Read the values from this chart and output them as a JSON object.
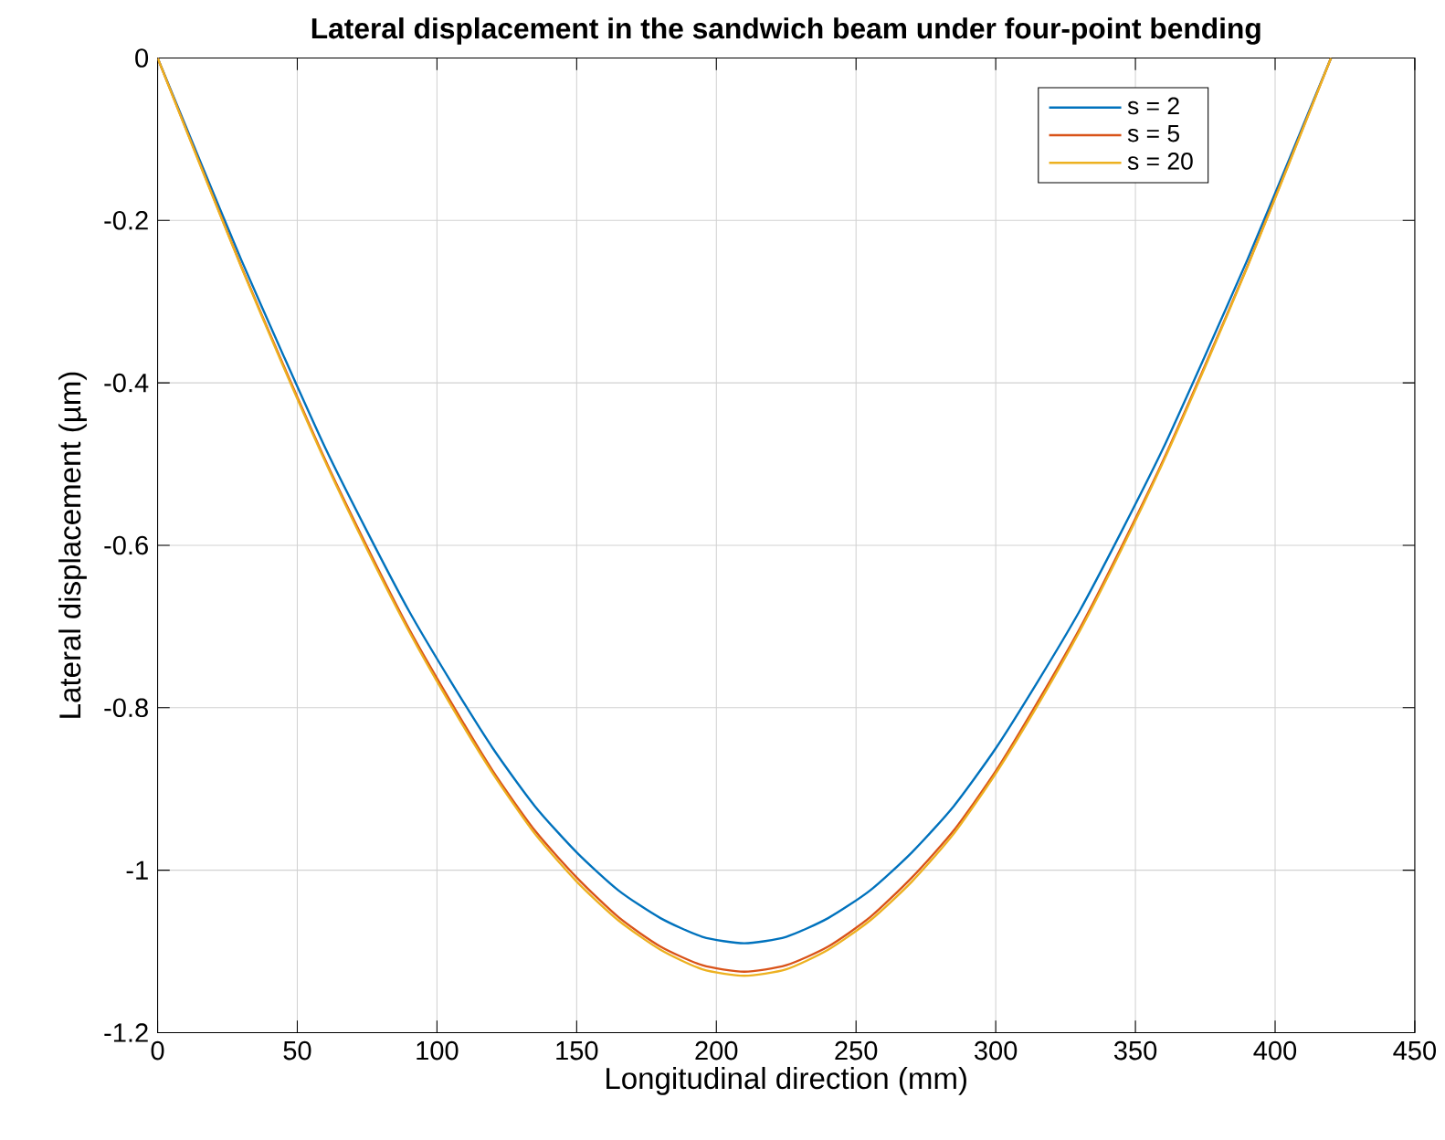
{
  "chart_data": {
    "type": "line",
    "title": "Lateral displacement in the sandwich beam under four-point bending",
    "xlabel": "Longitudinal direction (mm)",
    "ylabel": "Lateral displacement (µm)",
    "x": [
      0,
      15,
      30,
      45,
      60,
      75,
      90,
      105,
      120,
      135,
      150,
      165,
      180,
      195,
      210,
      225,
      240,
      255,
      270,
      285,
      300,
      315,
      330,
      345,
      360,
      375,
      390,
      405,
      420
    ],
    "series": [
      {
        "name": "s = 2",
        "color": "#0072bd",
        "values": [
          0,
          -0.125,
          -0.249,
          -0.366,
          -0.48,
          -0.583,
          -0.681,
          -0.768,
          -0.85,
          -0.921,
          -0.978,
          -1.025,
          -1.059,
          -1.082,
          -1.09,
          -1.082,
          -1.059,
          -1.025,
          -0.978,
          -0.921,
          -0.85,
          -0.768,
          -0.681,
          -0.583,
          -0.48,
          -0.366,
          -0.249,
          -0.125,
          0
        ]
      },
      {
        "name": "s = 5",
        "color": "#d95319",
        "values": [
          0,
          -0.129,
          -0.257,
          -0.378,
          -0.495,
          -0.602,
          -0.703,
          -0.793,
          -0.878,
          -0.951,
          -1.009,
          -1.058,
          -1.094,
          -1.117,
          -1.125,
          -1.117,
          -1.094,
          -1.058,
          -1.009,
          -0.951,
          -0.878,
          -0.793,
          -0.703,
          -0.602,
          -0.495,
          -0.378,
          -0.257,
          -0.129,
          0
        ]
      },
      {
        "name": "s = 20",
        "color": "#edb120",
        "values": [
          0,
          -0.13,
          -0.258,
          -0.38,
          -0.497,
          -0.605,
          -0.706,
          -0.797,
          -0.881,
          -0.955,
          -1.014,
          -1.062,
          -1.098,
          -1.122,
          -1.13,
          -1.122,
          -1.098,
          -1.062,
          -1.014,
          -0.955,
          -0.881,
          -0.797,
          -0.706,
          -0.605,
          -0.497,
          -0.38,
          -0.258,
          -0.13,
          0
        ]
      }
    ],
    "xlim": [
      0,
      450
    ],
    "ylim": [
      -1.2,
      0
    ],
    "xticks": [
      0,
      50,
      100,
      150,
      200,
      250,
      300,
      350,
      400,
      450
    ],
    "yticks": [
      -1.2,
      -1,
      -0.8,
      -0.6,
      -0.4,
      -0.2,
      0
    ],
    "grid": true,
    "legend": "top right"
  }
}
